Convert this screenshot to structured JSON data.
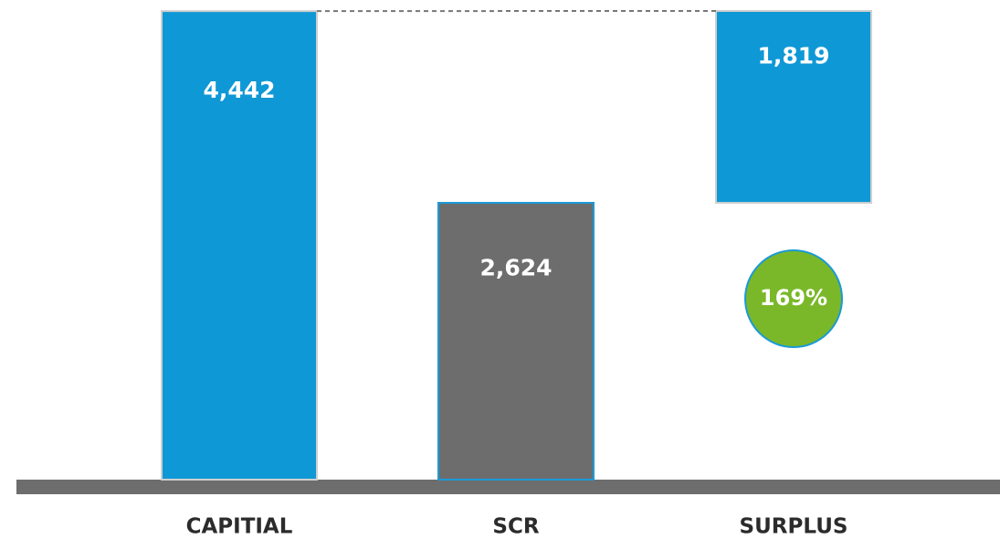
{
  "chart_data": {
    "type": "waterfall",
    "categories": [
      "CAPITIAL",
      "SCR",
      "SURPLUS"
    ],
    "values": [
      4442,
      2624,
      1819
    ],
    "value_labels": [
      "4,442",
      "2,624",
      "1,819"
    ],
    "measures": [
      "absolute",
      "absolute",
      "relative"
    ],
    "colors": [
      "#0f98d6",
      "#6d6d6d",
      "#0f98d6"
    ],
    "annotation": {
      "text": "169%",
      "color": "#7ab829"
    }
  }
}
